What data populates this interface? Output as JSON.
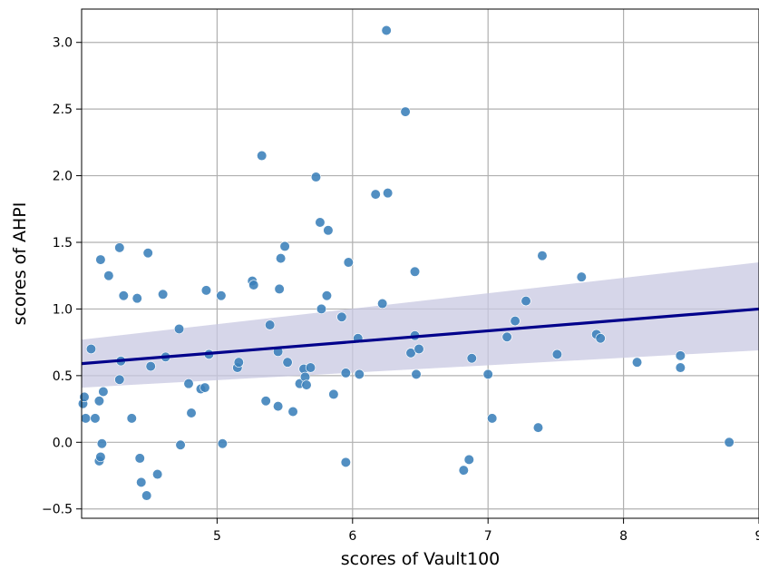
{
  "chart_data": {
    "type": "scatter",
    "xlabel": "scores of Vault100",
    "ylabel": "scores of AHPI",
    "xlim": [
      4.0,
      9.0
    ],
    "ylim": [
      -0.57,
      3.25
    ],
    "xticks": [
      "5",
      "6",
      "7",
      "8",
      "9"
    ],
    "xtick_values": [
      5,
      6,
      7,
      8,
      9
    ],
    "yticks": [
      "−0.5",
      "0.0",
      "0.5",
      "1.0",
      "1.5",
      "2.0",
      "2.5",
      "3.0"
    ],
    "ytick_values": [
      -0.5,
      0.0,
      0.5,
      1.0,
      1.5,
      2.0,
      2.5,
      3.0
    ],
    "grid": true,
    "colors": {
      "points": "#3a7fb9",
      "regression_line": "#00008b",
      "confidence_band": "#c8c8e1",
      "grid": "#b0b0b0"
    },
    "regression": {
      "x": [
        4.0,
        9.0
      ],
      "y": [
        0.59,
        1.0
      ],
      "ci_lower": [
        0.41,
        0.69
      ],
      "ci_upper": [
        0.77,
        1.35
      ]
    },
    "points": [
      {
        "x": 4.01,
        "y": 0.29
      },
      {
        "x": 4.02,
        "y": 0.34
      },
      {
        "x": 4.03,
        "y": 0.18
      },
      {
        "x": 4.07,
        "y": 0.7
      },
      {
        "x": 4.1,
        "y": 0.18
      },
      {
        "x": 4.13,
        "y": 0.31
      },
      {
        "x": 4.13,
        "y": -0.14
      },
      {
        "x": 4.14,
        "y": -0.11
      },
      {
        "x": 4.14,
        "y": 1.37
      },
      {
        "x": 4.15,
        "y": -0.01
      },
      {
        "x": 4.16,
        "y": 0.38
      },
      {
        "x": 4.2,
        "y": 1.25
      },
      {
        "x": 4.28,
        "y": 0.47
      },
      {
        "x": 4.28,
        "y": 1.46
      },
      {
        "x": 4.29,
        "y": 0.61
      },
      {
        "x": 4.31,
        "y": 1.1
      },
      {
        "x": 4.37,
        "y": 0.18
      },
      {
        "x": 4.41,
        "y": 1.08
      },
      {
        "x": 4.43,
        "y": -0.12
      },
      {
        "x": 4.44,
        "y": -0.3
      },
      {
        "x": 4.48,
        "y": -0.4
      },
      {
        "x": 4.49,
        "y": 1.42
      },
      {
        "x": 4.51,
        "y": 0.57
      },
      {
        "x": 4.56,
        "y": -0.24
      },
      {
        "x": 4.6,
        "y": 1.11
      },
      {
        "x": 4.62,
        "y": 0.64
      },
      {
        "x": 4.72,
        "y": 0.85
      },
      {
        "x": 4.73,
        "y": -0.02
      },
      {
        "x": 4.79,
        "y": 0.44
      },
      {
        "x": 4.81,
        "y": 0.22
      },
      {
        "x": 4.88,
        "y": 0.4
      },
      {
        "x": 4.91,
        "y": 0.41
      },
      {
        "x": 4.92,
        "y": 1.14
      },
      {
        "x": 4.94,
        "y": 0.66
      },
      {
        "x": 5.03,
        "y": 1.1
      },
      {
        "x": 5.04,
        "y": -0.01
      },
      {
        "x": 5.15,
        "y": 0.56
      },
      {
        "x": 5.16,
        "y": 0.6
      },
      {
        "x": 5.26,
        "y": 1.21
      },
      {
        "x": 5.27,
        "y": 1.18
      },
      {
        "x": 5.33,
        "y": 2.15
      },
      {
        "x": 5.36,
        "y": 0.31
      },
      {
        "x": 5.39,
        "y": 0.88
      },
      {
        "x": 5.45,
        "y": 0.68
      },
      {
        "x": 5.45,
        "y": 0.27
      },
      {
        "x": 5.46,
        "y": 1.15
      },
      {
        "x": 5.47,
        "y": 1.38
      },
      {
        "x": 5.5,
        "y": 1.47
      },
      {
        "x": 5.52,
        "y": 0.6
      },
      {
        "x": 5.56,
        "y": 0.23
      },
      {
        "x": 5.61,
        "y": 0.44
      },
      {
        "x": 5.64,
        "y": 0.55
      },
      {
        "x": 5.65,
        "y": 0.49
      },
      {
        "x": 5.66,
        "y": 0.43
      },
      {
        "x": 5.69,
        "y": 0.56
      },
      {
        "x": 5.73,
        "y": 1.99
      },
      {
        "x": 5.76,
        "y": 1.65
      },
      {
        "x": 5.77,
        "y": 1.0
      },
      {
        "x": 5.81,
        "y": 1.1
      },
      {
        "x": 5.82,
        "y": 1.59
      },
      {
        "x": 5.86,
        "y": 0.36
      },
      {
        "x": 5.92,
        "y": 0.94
      },
      {
        "x": 5.95,
        "y": 0.52
      },
      {
        "x": 5.95,
        "y": -0.15
      },
      {
        "x": 5.97,
        "y": 1.35
      },
      {
        "x": 6.04,
        "y": 0.78
      },
      {
        "x": 6.05,
        "y": 0.51
      },
      {
        "x": 6.17,
        "y": 1.86
      },
      {
        "x": 6.22,
        "y": 1.04
      },
      {
        "x": 6.25,
        "y": 3.09
      },
      {
        "x": 6.26,
        "y": 1.87
      },
      {
        "x": 6.39,
        "y": 2.48
      },
      {
        "x": 6.43,
        "y": 0.67
      },
      {
        "x": 6.46,
        "y": 0.8
      },
      {
        "x": 6.46,
        "y": 1.28
      },
      {
        "x": 6.47,
        "y": 0.51
      },
      {
        "x": 6.49,
        "y": 0.7
      },
      {
        "x": 6.82,
        "y": -0.21
      },
      {
        "x": 6.86,
        "y": -0.13
      },
      {
        "x": 6.88,
        "y": 0.63
      },
      {
        "x": 7.0,
        "y": 0.51
      },
      {
        "x": 7.03,
        "y": 0.18
      },
      {
        "x": 7.14,
        "y": 0.79
      },
      {
        "x": 7.2,
        "y": 0.91
      },
      {
        "x": 7.28,
        "y": 1.06
      },
      {
        "x": 7.37,
        "y": 0.11
      },
      {
        "x": 7.4,
        "y": 1.4
      },
      {
        "x": 7.51,
        "y": 0.66
      },
      {
        "x": 7.69,
        "y": 1.24
      },
      {
        "x": 7.8,
        "y": 0.81
      },
      {
        "x": 7.83,
        "y": 0.78
      },
      {
        "x": 8.1,
        "y": 0.6
      },
      {
        "x": 8.42,
        "y": 0.65
      },
      {
        "x": 8.42,
        "y": 0.56
      },
      {
        "x": 8.78,
        "y": 0.0
      }
    ]
  }
}
